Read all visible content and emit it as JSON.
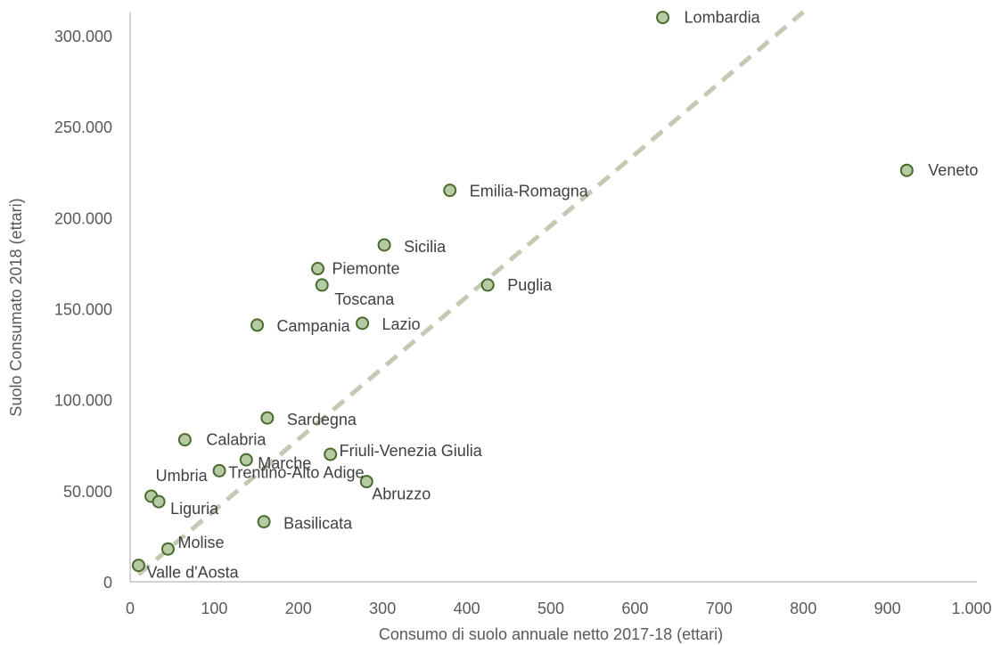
{
  "chart_data": {
    "type": "scatter",
    "xlabel": "Consumo di suolo annuale netto 2017-18 (ettari)",
    "ylabel": "Suolo Consumato 2018 (ettari)",
    "xlim": [
      0,
      1000
    ],
    "ylim": [
      0,
      300000
    ],
    "x_ticks": [
      {
        "value": 0,
        "label": "0"
      },
      {
        "value": 100,
        "label": "100"
      },
      {
        "value": 200,
        "label": "200"
      },
      {
        "value": 300,
        "label": "300"
      },
      {
        "value": 400,
        "label": "400"
      },
      {
        "value": 500,
        "label": "500"
      },
      {
        "value": 600,
        "label": "600"
      },
      {
        "value": 700,
        "label": "700"
      },
      {
        "value": 800,
        "label": "800"
      },
      {
        "value": 900,
        "label": "900"
      },
      {
        "value": 1000,
        "label": "1.000"
      }
    ],
    "y_ticks": [
      {
        "value": 0,
        "label": "0"
      },
      {
        "value": 50000,
        "label": "50.000"
      },
      {
        "value": 100000,
        "label": "100.000"
      },
      {
        "value": 150000,
        "label": "150.000"
      },
      {
        "value": 200000,
        "label": "200.000"
      },
      {
        "value": 250000,
        "label": "250.000"
      },
      {
        "value": 300000,
        "label": "300.000"
      }
    ],
    "grid": false,
    "trendline": {
      "style": "dashed",
      "color": "#c4c9b4",
      "from": [
        10,
        4000
      ],
      "to": [
        800,
        313000
      ]
    },
    "marker": {
      "fill": "#b5cba4",
      "stroke": "#4a6a2c"
    },
    "points": [
      {
        "name": "Lombardia",
        "x": 633,
        "y": 310000
      },
      {
        "name": "Veneto",
        "x": 923,
        "y": 226000
      },
      {
        "name": "Emilia-Romagna",
        "x": 380,
        "y": 215000
      },
      {
        "name": "Sicilia",
        "x": 302,
        "y": 185000
      },
      {
        "name": "Piemonte",
        "x": 223,
        "y": 172000
      },
      {
        "name": "Toscana",
        "x": 228,
        "y": 163000
      },
      {
        "name": "Puglia",
        "x": 425,
        "y": 163000
      },
      {
        "name": "Campania",
        "x": 151,
        "y": 141000
      },
      {
        "name": "Lazio",
        "x": 276,
        "y": 142000
      },
      {
        "name": "Sardegna",
        "x": 163,
        "y": 90000
      },
      {
        "name": "Calabria",
        "x": 65,
        "y": 78000
      },
      {
        "name": "Friuli-Venezia Giulia",
        "x": 238,
        "y": 70000
      },
      {
        "name": "Marche",
        "x": 138,
        "y": 67000
      },
      {
        "name": "Trentino-Alto Adige",
        "x": 106,
        "y": 61000
      },
      {
        "name": "Abruzzo",
        "x": 281,
        "y": 55000
      },
      {
        "name": "Umbria",
        "x": 25,
        "y": 47000
      },
      {
        "name": "Liguria",
        "x": 34,
        "y": 44000
      },
      {
        "name": "Basilicata",
        "x": 159,
        "y": 33000
      },
      {
        "name": "Molise",
        "x": 45,
        "y": 18000
      },
      {
        "name": "Valle d'Aosta",
        "x": 10,
        "y": 9000
      }
    ]
  }
}
